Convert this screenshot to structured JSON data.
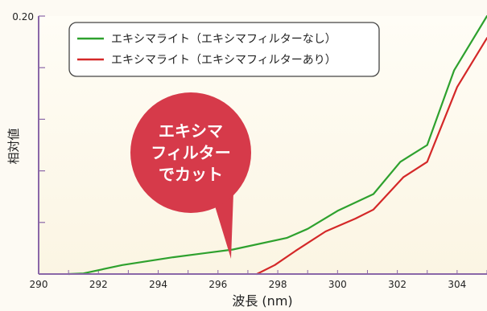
{
  "chart_data": {
    "type": "line",
    "xlabel": "波長 (nm)",
    "ylabel": "相対値",
    "xlim": [
      290,
      305
    ],
    "ylim": [
      0,
      0.2
    ],
    "x_ticks": [
      "290",
      "292",
      "294",
      "296",
      "298",
      "300",
      "302",
      "304"
    ],
    "y_ticks": [
      "0.20"
    ],
    "grid": false,
    "legend_position": "top-left",
    "series": [
      {
        "name": "エキシマライト（エキシマフィルターなし）",
        "color": "#2ea12e",
        "points": [
          [
            291.0,
            0.0
          ],
          [
            291.5,
            0.0005
          ],
          [
            292.8,
            0.007
          ],
          [
            294.5,
            0.013
          ],
          [
            296.5,
            0.019
          ],
          [
            298.3,
            0.028
          ],
          [
            299.0,
            0.035
          ],
          [
            300.0,
            0.049
          ],
          [
            301.2,
            0.062
          ],
          [
            302.1,
            0.087
          ],
          [
            303.0,
            0.1
          ],
          [
            303.9,
            0.158
          ],
          [
            305.0,
            0.2
          ]
        ]
      },
      {
        "name": "エキシマライト（エキシマフィルターあり）",
        "color": "#d42828",
        "points": [
          [
            297.3,
            0.0
          ],
          [
            297.9,
            0.007
          ],
          [
            298.6,
            0.018
          ],
          [
            299.6,
            0.033
          ],
          [
            300.6,
            0.043
          ],
          [
            301.2,
            0.05
          ],
          [
            302.2,
            0.075
          ],
          [
            303.0,
            0.087
          ],
          [
            304.0,
            0.145
          ],
          [
            305.0,
            0.183
          ]
        ]
      }
    ]
  },
  "callout": {
    "line1": "エキシマ",
    "line2": "フィルター",
    "line3": "でカット",
    "color": "#d63a4a"
  }
}
